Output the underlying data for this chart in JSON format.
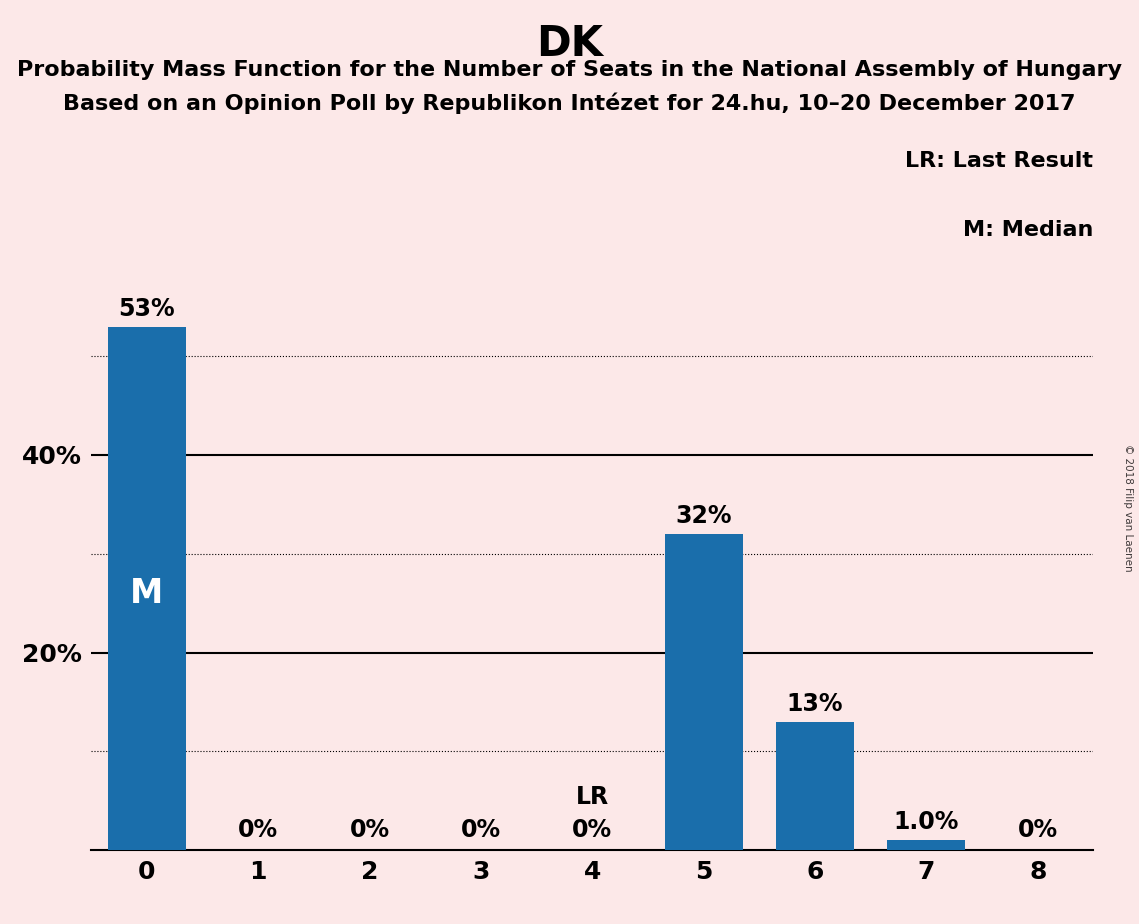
{
  "title": "DK",
  "subtitle1": "Probability Mass Function for the Number of Seats in the National Assembly of Hungary",
  "subtitle2": "Based on an Opinion Poll by Republikon Intézet for 24.hu, 10–20 December 2017",
  "watermark": "© 2018 Filip van Laenen",
  "categories": [
    0,
    1,
    2,
    3,
    4,
    5,
    6,
    7,
    8
  ],
  "values": [
    53,
    0,
    0,
    0,
    0,
    32,
    13,
    1.0,
    0
  ],
  "bar_color": "#1a6eab",
  "background_color": "#fce8e8",
  "bar_labels": [
    "53%",
    "0%",
    "0%",
    "0%",
    "0%",
    "32%",
    "13%",
    "1.0%",
    "0%"
  ],
  "median_bar": 0,
  "last_result_bar": 4,
  "ylim": [
    0,
    58
  ],
  "legend_lr": "LR: Last Result",
  "legend_m": "M: Median",
  "annotation_m": "M",
  "annotation_lr": "LR",
  "dotted_grid_values": [
    10,
    30,
    50
  ],
  "solid_grid_values": [
    20,
    40
  ],
  "ytick_positions": [
    20,
    40
  ],
  "ytick_labels": [
    "20%",
    "40%"
  ],
  "title_fontsize": 30,
  "subtitle_fontsize": 16,
  "tick_fontsize": 18,
  "legend_fontsize": 16,
  "annotation_fontsize": 24,
  "bar_label_fontsize": 17
}
